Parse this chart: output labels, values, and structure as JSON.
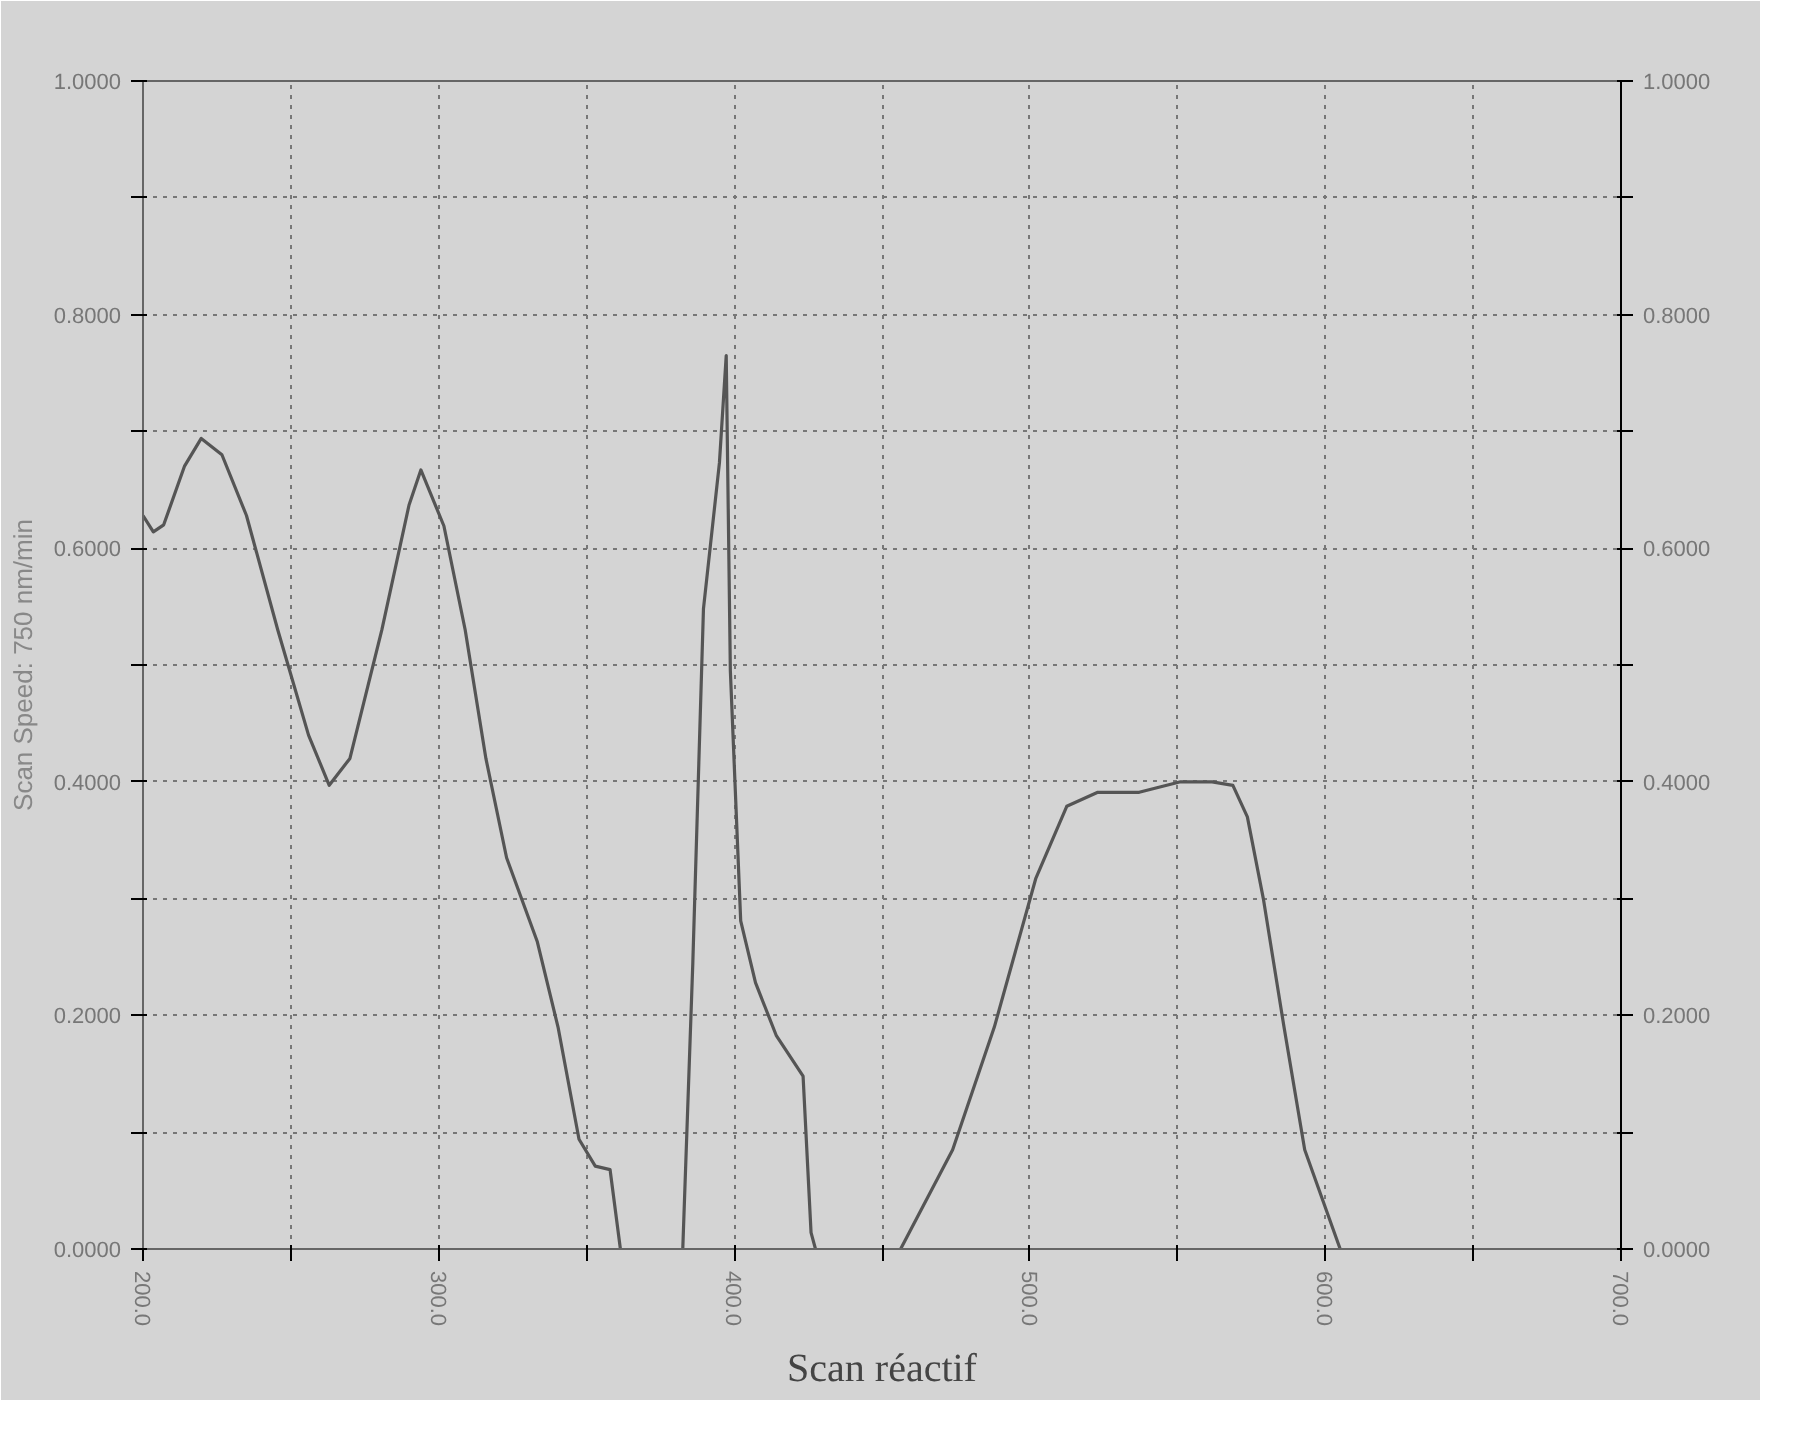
{
  "chart_data": {
    "type": "line",
    "title": "Scan réactif",
    "ylabel": "Scan Speed: 750 nm/min",
    "x": [
      200,
      203.5,
      207,
      214,
      219.7,
      226.7,
      235,
      245.6,
      256,
      263,
      270,
      280.8,
      290,
      294,
      301.8,
      309,
      316,
      323,
      333.4,
      340.4,
      347.5,
      353,
      358,
      361.5,
      370,
      382.6,
      386,
      389.6,
      395,
      397.3,
      398.7,
      402.2,
      407.2,
      414.2,
      423.3,
      426,
      427.5,
      440,
      456.3,
      473.9,
      488,
      502,
      512.5,
      523,
      537,
      551,
      561.7,
      568.7,
      573.6,
      579,
      586,
      593,
      605
    ],
    "series": [
      {
        "color": "#555555",
        "values": [
          0.628,
          0.614,
          0.62,
          0.67,
          0.694,
          0.68,
          0.628,
          0.53,
          0.44,
          0.397,
          0.42,
          0.53,
          0.637,
          0.667,
          0.619,
          0.53,
          0.42,
          0.335,
          0.263,
          0.19,
          0.094,
          0.071,
          0.068,
          0.0,
          null,
          0.0,
          0.245,
          0.548,
          0.673,
          0.765,
          0.495,
          0.281,
          0.228,
          0.183,
          0.148,
          0.014,
          0.0,
          null,
          0.0,
          0.085,
          0.19,
          0.317,
          0.379,
          0.391,
          0.391,
          0.4,
          0.4,
          0.397,
          0.37,
          0.3,
          0.19,
          0.085,
          0.0
        ]
      }
    ],
    "xlim": [
      200,
      700
    ],
    "ylim": [
      0,
      1
    ],
    "y2lim": [
      0,
      1
    ],
    "xticks": [
      {
        "value": 200,
        "label": "200.0"
      },
      {
        "value": 250,
        "label": null
      },
      {
        "value": 300,
        "label": "300.0"
      },
      {
        "value": 350,
        "label": null
      },
      {
        "value": 400,
        "label": "400.0"
      },
      {
        "value": 450,
        "label": null
      },
      {
        "value": 500,
        "label": "500.0"
      },
      {
        "value": 550,
        "label": null
      },
      {
        "value": 600,
        "label": "600.0"
      },
      {
        "value": 650,
        "label": null
      },
      {
        "value": 700,
        "label": "700.0"
      }
    ],
    "yticks": [
      {
        "value": 0,
        "label": "0.0000"
      },
      {
        "value": 0.1,
        "label": null
      },
      {
        "value": 0.2,
        "label": "0.2000"
      },
      {
        "value": 0.3,
        "label": null
      },
      {
        "value": 0.4,
        "label": "0.4000"
      },
      {
        "value": 0.5,
        "label": null
      },
      {
        "value": 0.6,
        "label": "0.6000"
      },
      {
        "value": 0.7,
        "label": null
      },
      {
        "value": 0.8,
        "label": "0.8000"
      },
      {
        "value": 0.9,
        "label": null
      },
      {
        "value": 1,
        "label": "1.0000"
      }
    ],
    "y2ticks": [
      {
        "value": 0,
        "label": "0.0000"
      },
      {
        "value": 0.1,
        "label": null
      },
      {
        "value": 0.2,
        "label": "0.2000"
      },
      {
        "value": 0.3,
        "label": null
      },
      {
        "value": 0.4,
        "label": "0.4000"
      },
      {
        "value": 0.5,
        "label": null
      },
      {
        "value": 0.6,
        "label": "0.6000"
      },
      {
        "value": 0.7,
        "label": null
      },
      {
        "value": 0.8,
        "label": "0.8000"
      },
      {
        "value": 0.9,
        "label": null
      },
      {
        "value": 1,
        "label": "1.0000"
      }
    ],
    "grid": true,
    "marker": "none",
    "line_style": "solid"
  }
}
